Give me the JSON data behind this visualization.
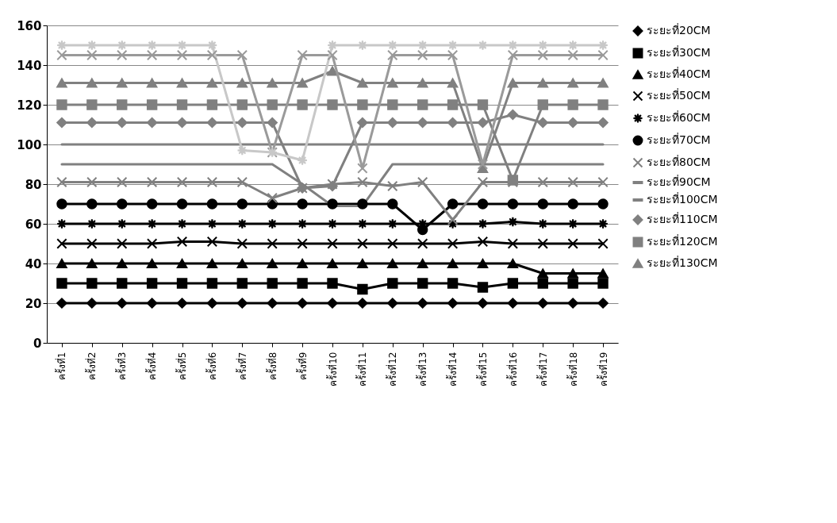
{
  "chart_data": {
    "type": "line",
    "categories": [
      "ครั้งที่1",
      "ครั้งที่2",
      "ครั้งที่3",
      "ครั้งที่4",
      "ครั้งที่5",
      "ครั้งที่6",
      "ครั้งที่7",
      "ครั้งที่8",
      "ครั้งที่9",
      "ครั้งที่10",
      "ครั้งที่11",
      "ครั้งที่12",
      "ครั้งที่13",
      "ครั้งที่14",
      "ครั้งที่15",
      "ครั้งที่16",
      "ครั้งที่17",
      "ครั้งที่18",
      "ครั้งที่19"
    ],
    "series": [
      {
        "name": "ระยะที่20CM",
        "color": "#000000",
        "marker": "diamond",
        "values": [
          20,
          20,
          20,
          20,
          20,
          20,
          20,
          20,
          20,
          20,
          20,
          20,
          20,
          20,
          20,
          20,
          20,
          20,
          20
        ]
      },
      {
        "name": "ระยะที่30CM",
        "color": "#000000",
        "marker": "square",
        "values": [
          30,
          30,
          30,
          30,
          30,
          30,
          30,
          30,
          30,
          30,
          27,
          30,
          30,
          30,
          28,
          30,
          30,
          30,
          30
        ]
      },
      {
        "name": "ระยะที่40CM",
        "color": "#000000",
        "marker": "triangle",
        "values": [
          40,
          40,
          40,
          40,
          40,
          40,
          40,
          40,
          40,
          40,
          40,
          40,
          40,
          40,
          40,
          40,
          35,
          35,
          35
        ]
      },
      {
        "name": "ระยะที่50CM",
        "color": "#000000",
        "marker": "cross",
        "values": [
          50,
          50,
          50,
          50,
          51,
          51,
          50,
          50,
          50,
          50,
          50,
          50,
          50,
          50,
          51,
          50,
          50,
          50,
          50
        ]
      },
      {
        "name": "ระยะที่60CM",
        "color": "#000000",
        "marker": "star",
        "values": [
          60,
          60,
          60,
          60,
          60,
          60,
          60,
          60,
          60,
          60,
          60,
          60,
          60,
          60,
          60,
          61,
          60,
          60,
          60
        ]
      },
      {
        "name": "ระยะที่70CM",
        "color": "#000000",
        "marker": "circle",
        "values": [
          70,
          70,
          70,
          70,
          70,
          70,
          70,
          70,
          70,
          70,
          70,
          70,
          57,
          70,
          70,
          70,
          70,
          70,
          70
        ]
      },
      {
        "name": "ระยะที่80CM",
        "color": "#808080",
        "marker": "cross",
        "values": [
          81,
          81,
          81,
          81,
          81,
          81,
          81,
          73,
          78,
          80,
          81,
          79,
          81,
          62,
          81,
          81,
          81,
          81,
          81
        ]
      },
      {
        "name": "ระยะที่90CM",
        "color": "#808080",
        "marker": "none",
        "values": [
          90,
          90,
          90,
          90,
          90,
          90,
          90,
          90,
          80,
          69,
          69,
          90,
          90,
          90,
          90,
          90,
          90,
          90,
          90
        ]
      },
      {
        "name": "ระยะที่100CM",
        "color": "#808080",
        "marker": "none",
        "values": [
          100,
          100,
          100,
          100,
          100,
          100,
          100,
          100,
          100,
          100,
          100,
          100,
          100,
          100,
          100,
          100,
          100,
          100,
          100
        ]
      },
      {
        "name": "ระยะที่110CM",
        "color": "#808080",
        "marker": "diamond",
        "values": [
          111,
          111,
          111,
          111,
          111,
          111,
          111,
          111,
          78,
          79,
          111,
          111,
          111,
          111,
          111,
          115,
          111,
          111,
          111
        ]
      },
      {
        "name": "ระยะที่120CM",
        "color": "#808080",
        "marker": "square",
        "values": [
          120,
          120,
          120,
          120,
          120,
          120,
          120,
          120,
          120,
          120,
          120,
          120,
          120,
          120,
          120,
          82,
          120,
          120,
          120
        ]
      },
      {
        "name": "ระยะที่130CM",
        "color": "#808080",
        "marker": "triangle",
        "values": [
          131,
          131,
          131,
          131,
          131,
          131,
          131,
          131,
          131,
          137,
          131,
          131,
          131,
          131,
          88,
          131,
          131,
          131,
          131
        ]
      },
      {
        "color": "#9a9a9a",
        "marker": "cross",
        "values": [
          145,
          145,
          145,
          145,
          145,
          145,
          145,
          96,
          145,
          145,
          88,
          145,
          145,
          145,
          90,
          145,
          145,
          145,
          145
        ]
      },
      {
        "color": "#c8c8c8",
        "marker": "star",
        "values": [
          150,
          150,
          150,
          150,
          150,
          150,
          97,
          96,
          92,
          150,
          150,
          150,
          150,
          150,
          150,
          150,
          150,
          150,
          150
        ]
      }
    ],
    "ylim": [
      0,
      160
    ],
    "yticks": [
      0,
      20,
      40,
      60,
      80,
      100,
      120,
      140,
      160
    ],
    "grid": "y",
    "legend": "right"
  }
}
